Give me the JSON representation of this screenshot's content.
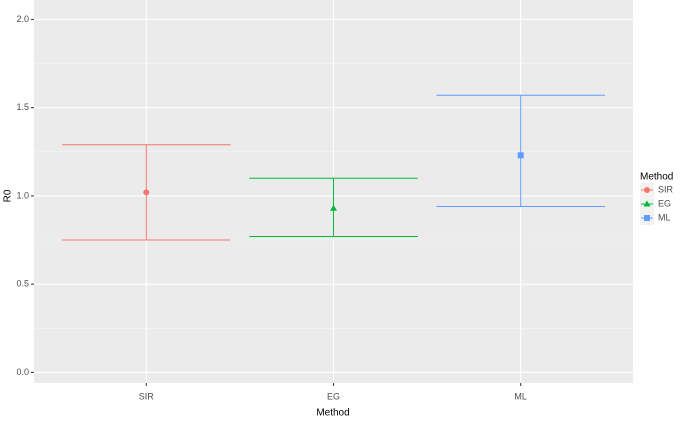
{
  "chart_data": {
    "type": "errorbar",
    "x_label": "Method",
    "y_label": "R0",
    "legend_title": "Method",
    "categories": [
      "SIR",
      "EG",
      "ML"
    ],
    "series": [
      {
        "name": "SIR",
        "color": "#F8766D",
        "shape": "circle",
        "values": [
          1.02,
          null,
          null
        ],
        "lower": [
          0.75,
          null,
          null
        ],
        "upper": [
          1.29,
          null,
          null
        ]
      },
      {
        "name": "EG",
        "color": "#00BA38",
        "shape": "triangle",
        "values": [
          null,
          0.93,
          null
        ],
        "lower": [
          null,
          0.77,
          null
        ],
        "upper": [
          null,
          1.1,
          null
        ]
      },
      {
        "name": "ML",
        "color": "#619CFF",
        "shape": "square",
        "values": [
          null,
          null,
          1.23
        ],
        "lower": [
          null,
          null,
          0.94
        ],
        "upper": [
          null,
          null,
          1.57
        ]
      }
    ],
    "ylim": [
      -0.06,
      2.11
    ],
    "yticks": [
      {
        "value": 0,
        "label": "0.0"
      },
      {
        "value": 0.5,
        "label": "0.5"
      },
      {
        "value": 1,
        "label": "1.0"
      },
      {
        "value": 1.5,
        "label": "1.5"
      },
      {
        "value": 2,
        "label": "2.0"
      }
    ],
    "grid": true,
    "legend": "right"
  }
}
